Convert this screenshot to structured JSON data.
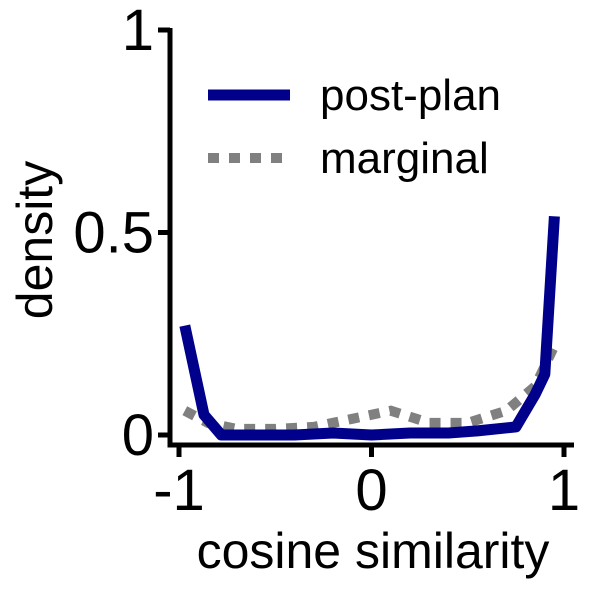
{
  "chart_data": {
    "type": "line",
    "xlabel": "cosine similarity",
    "ylabel": "density",
    "xlim": [
      -1,
      1
    ],
    "ylim": [
      0,
      1
    ],
    "x_ticks": [
      -1,
      0,
      1
    ],
    "x_tick_labels": [
      "-1",
      "0",
      "1"
    ],
    "y_ticks": [
      0,
      0.5,
      1
    ],
    "y_tick_labels": [
      "0",
      "0.5",
      "1"
    ],
    "legend_position": "top-right",
    "grid": false,
    "series": [
      {
        "name": "post-plan",
        "style": "solid",
        "color": "#00008b",
        "x": [
          -0.97,
          -0.87,
          -0.78,
          -0.6,
          -0.4,
          -0.2,
          0.0,
          0.2,
          0.4,
          0.55,
          0.75,
          0.85,
          0.9,
          0.95
        ],
        "values": [
          0.27,
          0.05,
          0.0,
          0.0,
          0.0,
          0.005,
          0.0,
          0.005,
          0.005,
          0.01,
          0.02,
          0.1,
          0.15,
          0.54
        ]
      },
      {
        "name": "marginal",
        "style": "dotted",
        "color": "#808080",
        "x": [
          -0.97,
          -0.85,
          -0.7,
          -0.5,
          -0.3,
          -0.1,
          0.1,
          0.3,
          0.5,
          0.7,
          0.85,
          0.95
        ],
        "values": [
          0.06,
          0.03,
          0.015,
          0.015,
          0.02,
          0.04,
          0.06,
          0.03,
          0.03,
          0.06,
          0.12,
          0.22
        ]
      }
    ]
  }
}
